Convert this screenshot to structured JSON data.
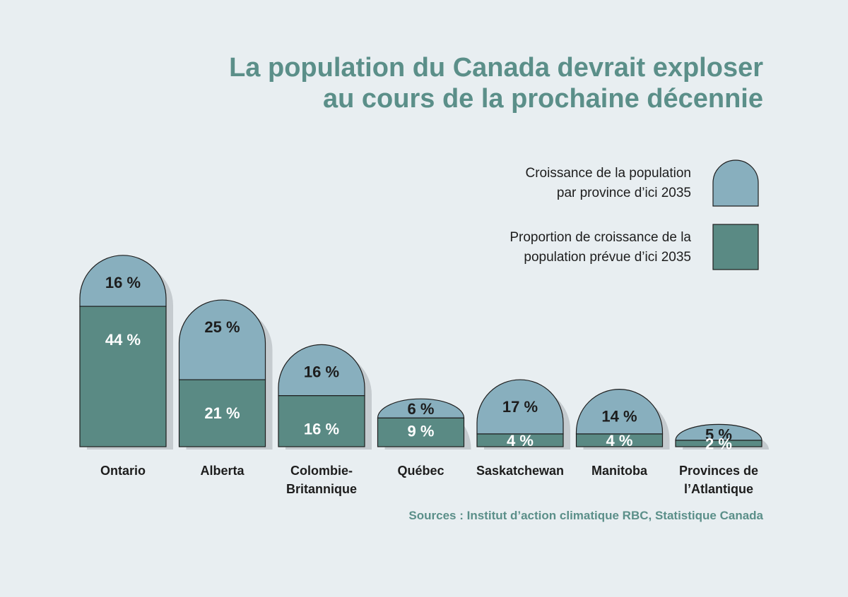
{
  "chart_data": {
    "type": "bar",
    "stacked": true,
    "title_lines": [
      "La population du Canada devrait exploser",
      "au cours de la prochaine décennie"
    ],
    "categories": [
      [
        "Ontario"
      ],
      [
        "Alberta"
      ],
      [
        "Colombie-",
        "Britannique"
      ],
      [
        "Québec"
      ],
      [
        "Saskatchewan"
      ],
      [
        "Manitoba"
      ],
      [
        "Provinces de",
        "l’Atlantique"
      ]
    ],
    "unit": "%",
    "series": [
      {
        "name_lines": [
          "Proportion de croissance de la",
          "population prévue d’ici 2035"
        ],
        "values": [
          44,
          21,
          16,
          9,
          4,
          4,
          2
        ],
        "labels": [
          "44 %",
          "21 %",
          "16 %",
          "9 %",
          "4 %",
          "4 %",
          "2 %"
        ],
        "color": "#5a8a84"
      },
      {
        "name_lines": [
          "Croissance de la population",
          "par province d’ici 2035"
        ],
        "values": [
          16,
          25,
          16,
          6,
          17,
          14,
          5
        ],
        "labels": [
          "16 %",
          "25 %",
          "16 %",
          "6 %",
          "17 %",
          "14 %",
          "5 %"
        ],
        "color": "#88afbe"
      }
    ],
    "legend_position": "top-right",
    "grid": false,
    "source": "Sources : Institut d’action climatique RBC, Statistique Canada"
  },
  "colors": {
    "background": "#e8eef1",
    "title": "#5b8f89",
    "shadow": "#c5cbcf",
    "outline": "#1e1e1e",
    "dark_label": "#ffffff",
    "light_label": "#1d1d1d"
  }
}
